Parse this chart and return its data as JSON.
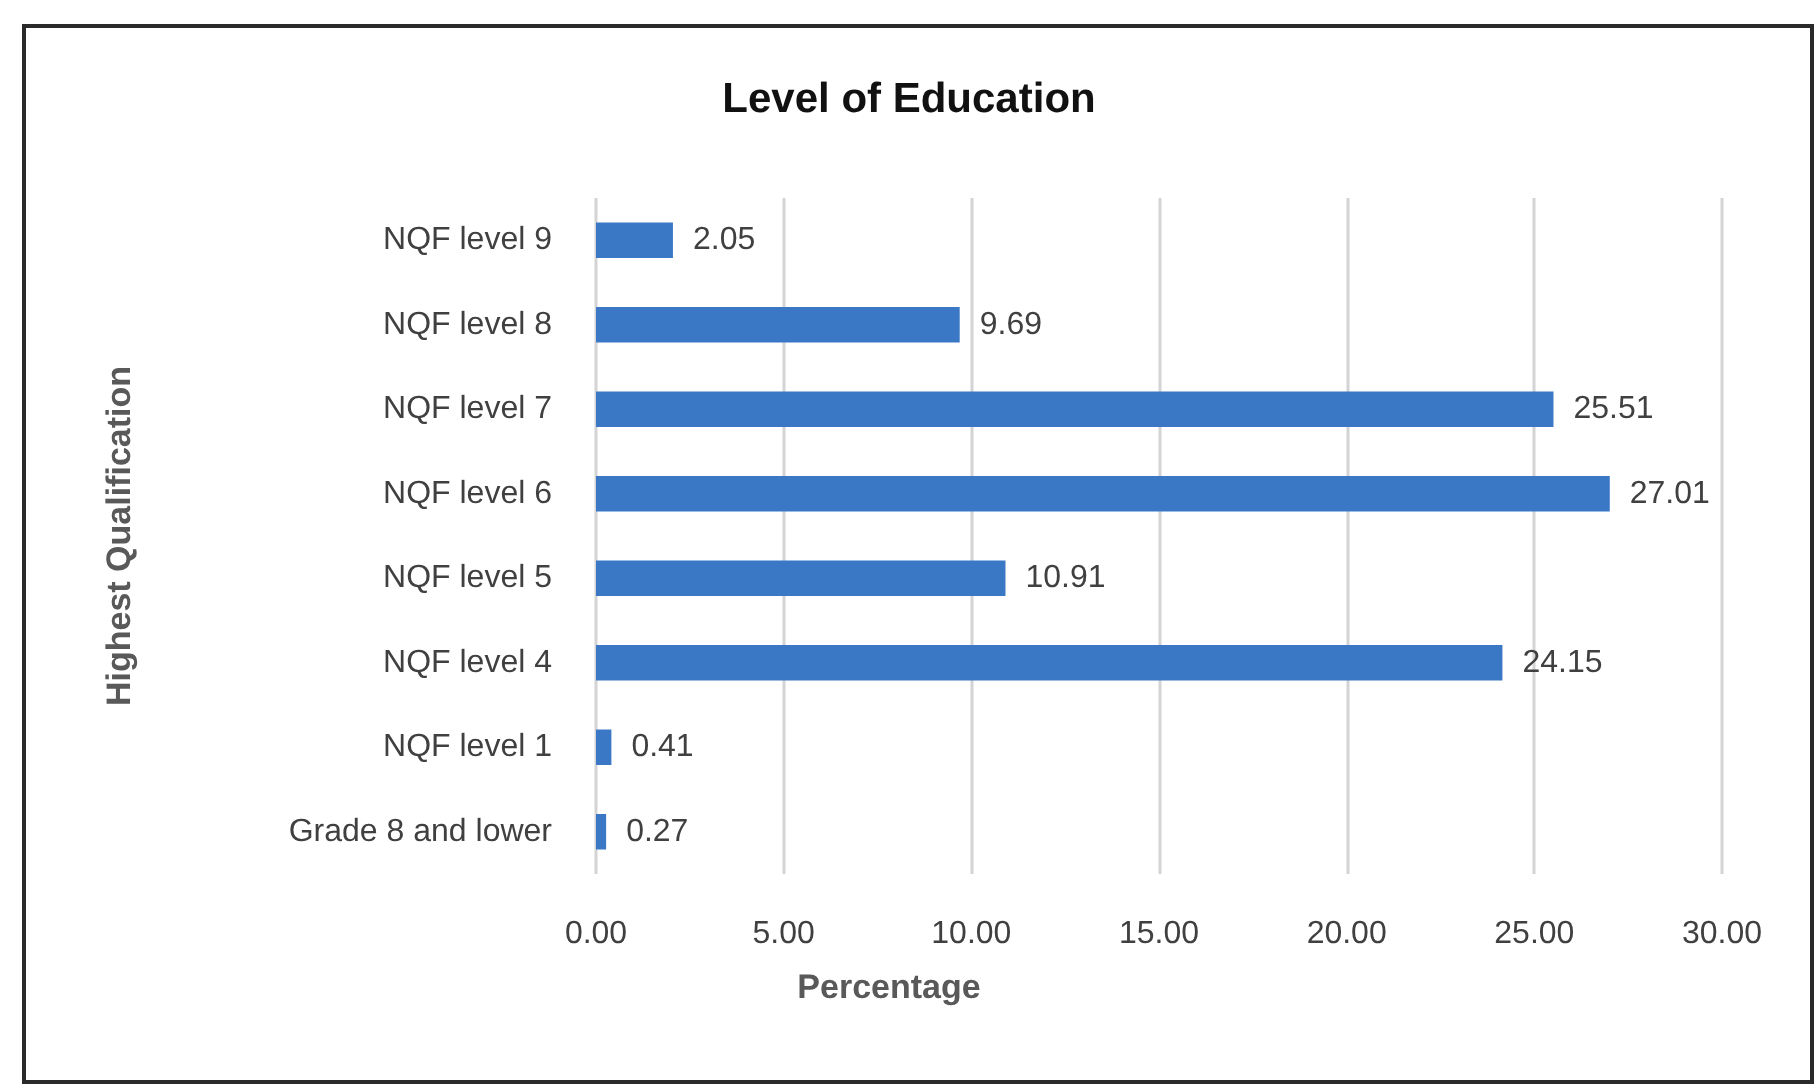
{
  "chart_data": {
    "type": "bar",
    "orientation": "horizontal",
    "title": "Level of Education",
    "xlabel": "Percentage",
    "ylabel": "Highest Qualification",
    "categories": [
      "NQF level 9",
      "NQF level 8",
      "NQF level 7",
      "NQF level 6",
      "NQF level 5",
      "NQF level 4",
      "NQF level 1",
      "Grade 8 and lower"
    ],
    "values": [
      2.05,
      9.69,
      25.51,
      27.01,
      10.91,
      24.15,
      0.41,
      0.27
    ],
    "color": "#3a78c6",
    "xlim": [
      0,
      30
    ],
    "xticks": [
      {
        "value": 0,
        "label": "0.00"
      },
      {
        "value": 5,
        "label": "5.00"
      },
      {
        "value": 10,
        "label": "10.00"
      },
      {
        "value": 15,
        "label": "15.00"
      },
      {
        "value": 20,
        "label": "20.00"
      },
      {
        "value": 25,
        "label": "25.00"
      },
      {
        "value": 30,
        "label": "30.00"
      }
    ],
    "grid": "x",
    "data_labels": true
  }
}
